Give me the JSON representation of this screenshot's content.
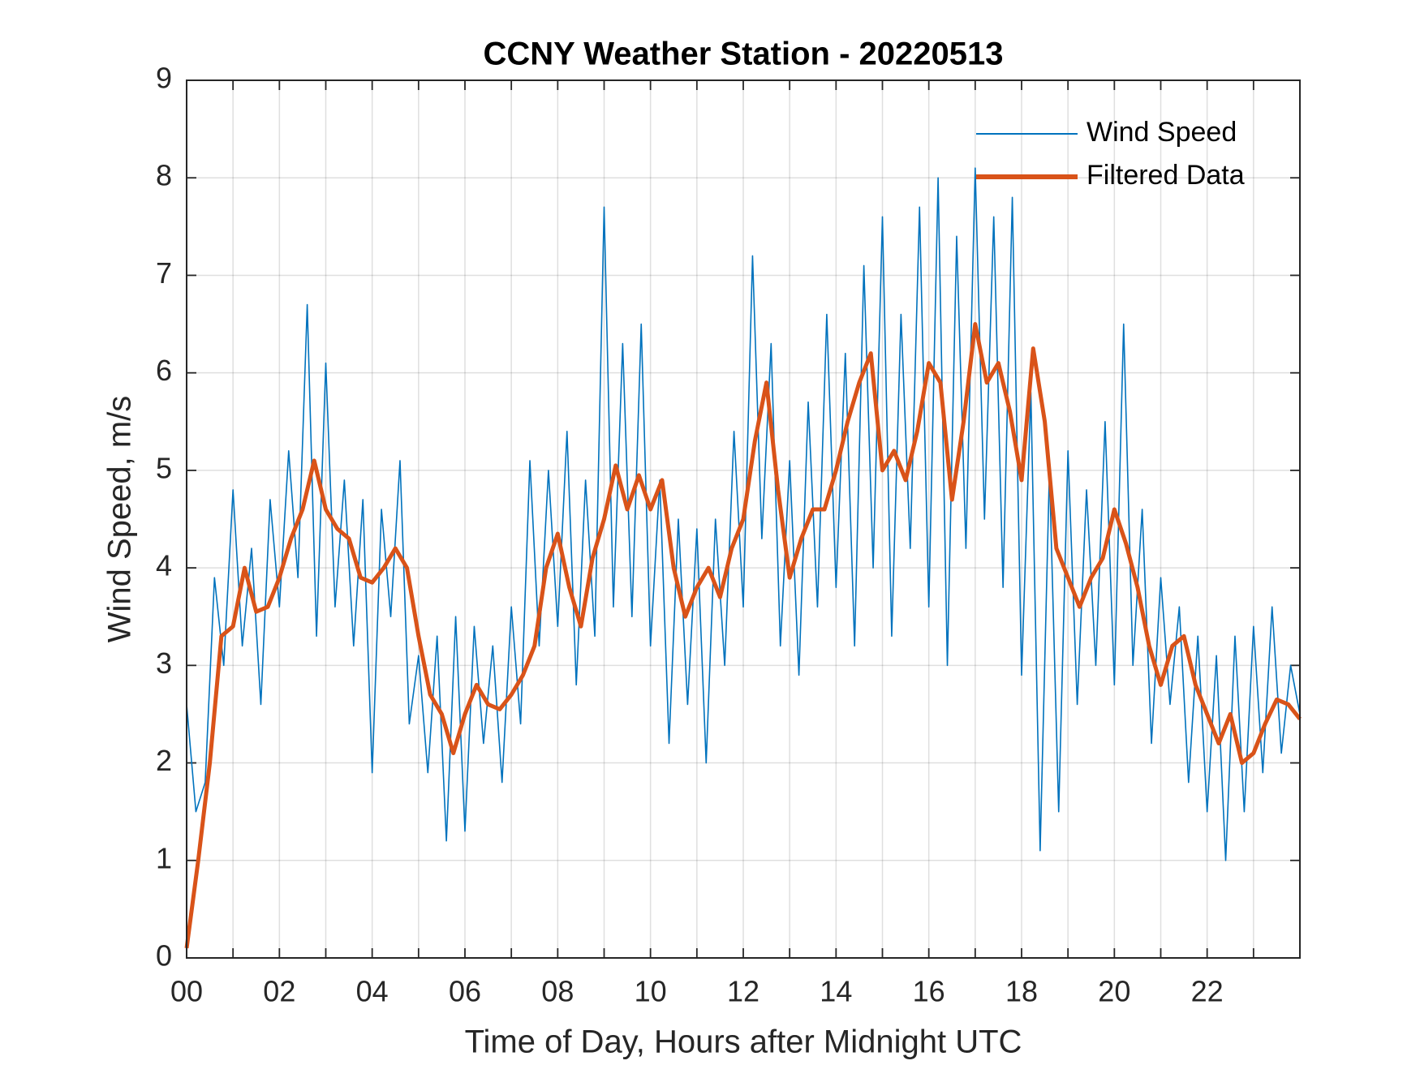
{
  "chart_data": {
    "type": "line",
    "title": "CCNY Weather Station - 20220513",
    "x_label": "Time of Day, Hours after Midnight UTC",
    "y_label": "Wind Speed, m/s",
    "xlim": [
      0,
      24
    ],
    "ylim": [
      0,
      9
    ],
    "xticks": [
      {
        "value": 0,
        "label": "00"
      },
      {
        "value": 2,
        "label": "02"
      },
      {
        "value": 4,
        "label": "04"
      },
      {
        "value": 6,
        "label": "06"
      },
      {
        "value": 8,
        "label": "08"
      },
      {
        "value": 10,
        "label": "10"
      },
      {
        "value": 12,
        "label": "12"
      },
      {
        "value": 14,
        "label": "14"
      },
      {
        "value": 16,
        "label": "16"
      },
      {
        "value": 18,
        "label": "18"
      },
      {
        "value": 20,
        "label": "20"
      },
      {
        "value": 22,
        "label": "22"
      }
    ],
    "xminorticks": [
      1,
      3,
      5,
      7,
      9,
      11,
      13,
      15,
      17,
      19,
      21,
      23
    ],
    "yticks": [
      0,
      1,
      2,
      3,
      4,
      5,
      6,
      7,
      8,
      9
    ],
    "grid": true,
    "legend": "top-right",
    "series": [
      {
        "name": "Wind Speed",
        "color": "#0072BD",
        "x": [
          0,
          0.2,
          0.4,
          0.6,
          0.8,
          1,
          1.2,
          1.4,
          1.6,
          1.8,
          2,
          2.2,
          2.4,
          2.6,
          2.8,
          3,
          3.2,
          3.4,
          3.6,
          3.8,
          4,
          4.2,
          4.4,
          4.6,
          4.8,
          5,
          5.2,
          5.4,
          5.6,
          5.8,
          6,
          6.2,
          6.4,
          6.6,
          6.8,
          7,
          7.2,
          7.4,
          7.6,
          7.8,
          8,
          8.2,
          8.4,
          8.6,
          8.8,
          9,
          9.2,
          9.4,
          9.6,
          9.8,
          10,
          10.2,
          10.4,
          10.6,
          10.8,
          11,
          11.2,
          11.4,
          11.6,
          11.8,
          12,
          12.2,
          12.4,
          12.6,
          12.8,
          13,
          13.2,
          13.4,
          13.6,
          13.8,
          14,
          14.2,
          14.4,
          14.6,
          14.8,
          15,
          15.2,
          15.4,
          15.6,
          15.8,
          16,
          16.2,
          16.4,
          16.6,
          16.8,
          17,
          17.2,
          17.4,
          17.6,
          17.8,
          18,
          18.2,
          18.4,
          18.6,
          18.8,
          19,
          19.2,
          19.4,
          19.6,
          19.8,
          20,
          20.2,
          20.4,
          20.6,
          20.8,
          21,
          21.2,
          21.4,
          21.6,
          21.8,
          22,
          22.2,
          22.4,
          22.6,
          22.8,
          23,
          23.2,
          23.4,
          23.6,
          23.8,
          24
        ],
        "values": [
          2.6,
          1.5,
          1.8,
          3.9,
          3.0,
          4.8,
          3.2,
          4.2,
          2.6,
          4.7,
          3.6,
          5.2,
          3.9,
          6.7,
          3.3,
          6.1,
          3.6,
          4.9,
          3.2,
          4.7,
          1.9,
          4.6,
          3.5,
          5.1,
          2.4,
          3.1,
          1.9,
          3.3,
          1.2,
          3.5,
          1.3,
          3.4,
          2.2,
          3.2,
          1.8,
          3.6,
          2.4,
          5.1,
          3.2,
          5.0,
          3.4,
          5.4,
          2.8,
          4.9,
          3.3,
          7.7,
          3.6,
          6.3,
          3.5,
          6.5,
          3.2,
          4.9,
          2.2,
          4.5,
          2.6,
          4.4,
          2.0,
          4.5,
          3.0,
          5.4,
          3.6,
          7.2,
          4.3,
          6.3,
          3.2,
          5.1,
          2.9,
          5.7,
          3.6,
          6.6,
          3.8,
          6.2,
          3.2,
          7.1,
          4.0,
          7.6,
          3.3,
          6.6,
          4.2,
          7.7,
          3.6,
          8.0,
          3.0,
          7.4,
          4.2,
          8.1,
          4.5,
          7.6,
          3.8,
          7.8,
          2.9,
          5.8,
          1.1,
          5.0,
          1.5,
          5.2,
          2.6,
          4.8,
          3.0,
          5.5,
          2.8,
          6.5,
          3.0,
          4.6,
          2.2,
          3.9,
          2.6,
          3.6,
          1.8,
          3.3,
          1.5,
          3.1,
          1.0,
          3.3,
          1.5,
          3.4,
          1.9,
          3.6,
          2.1,
          3.0,
          2.5
        ]
      },
      {
        "name": "Filtered Data",
        "color": "#D95319",
        "x": [
          0,
          0.25,
          0.5,
          0.75,
          1,
          1.25,
          1.5,
          1.75,
          2,
          2.25,
          2.5,
          2.75,
          3,
          3.25,
          3.5,
          3.75,
          4,
          4.25,
          4.5,
          4.75,
          5,
          5.25,
          5.5,
          5.75,
          6,
          6.25,
          6.5,
          6.75,
          7,
          7.25,
          7.5,
          7.75,
          8,
          8.25,
          8.5,
          8.75,
          9,
          9.25,
          9.5,
          9.75,
          10,
          10.25,
          10.5,
          10.75,
          11,
          11.25,
          11.5,
          11.75,
          12,
          12.25,
          12.5,
          12.75,
          13,
          13.25,
          13.5,
          13.75,
          14,
          14.25,
          14.5,
          14.75,
          15,
          15.25,
          15.5,
          15.75,
          16,
          16.25,
          16.5,
          16.75,
          17,
          17.25,
          17.5,
          17.75,
          18,
          18.25,
          18.5,
          18.75,
          19,
          19.25,
          19.5,
          19.75,
          20,
          20.25,
          20.5,
          20.75,
          21,
          21.25,
          21.5,
          21.75,
          22,
          22.25,
          22.5,
          22.75,
          23,
          23.25,
          23.5,
          23.75,
          24
        ],
        "values": [
          0.1,
          1.0,
          2.0,
          3.3,
          3.4,
          4.0,
          3.55,
          3.6,
          3.9,
          4.3,
          4.6,
          5.1,
          4.6,
          4.4,
          4.3,
          3.9,
          3.85,
          4.0,
          4.2,
          4.0,
          3.3,
          2.7,
          2.5,
          2.1,
          2.5,
          2.8,
          2.6,
          2.55,
          2.7,
          2.9,
          3.2,
          4.0,
          4.35,
          3.8,
          3.4,
          4.1,
          4.5,
          5.05,
          4.6,
          4.95,
          4.6,
          4.9,
          4.0,
          3.5,
          3.8,
          4.0,
          3.7,
          4.2,
          4.5,
          5.3,
          5.9,
          4.8,
          3.9,
          4.3,
          4.6,
          4.6,
          5.0,
          5.5,
          5.9,
          6.2,
          5.0,
          5.2,
          4.9,
          5.4,
          6.1,
          5.9,
          4.7,
          5.5,
          6.5,
          5.9,
          6.1,
          5.6,
          4.9,
          6.25,
          5.5,
          4.2,
          3.9,
          3.6,
          3.9,
          4.1,
          4.6,
          4.25,
          3.8,
          3.2,
          2.8,
          3.2,
          3.3,
          2.8,
          2.5,
          2.2,
          2.5,
          2.0,
          2.1,
          2.4,
          2.65,
          2.6,
          2.45
        ]
      }
    ]
  }
}
